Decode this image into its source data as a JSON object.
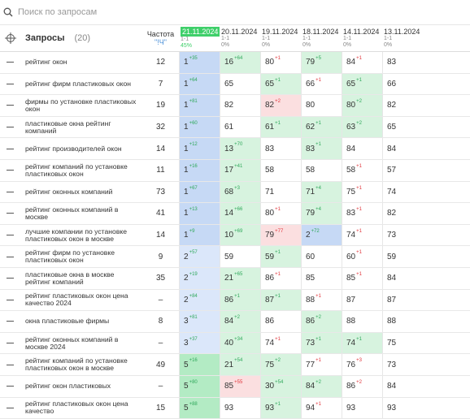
{
  "search": {
    "placeholder": "Поиск по запросам"
  },
  "header": {
    "queries": "Запросы",
    "count": "(20)",
    "freq": "Частота",
    "freq_sub": "\"!Ч\"",
    "dates": [
      {
        "date": "21.11.2024",
        "range": "1-1",
        "pct": "45%",
        "bg": "#3fcf6a"
      },
      {
        "date": "20.11.2024",
        "range": "1-1",
        "pct": "0%"
      },
      {
        "date": "19.11.2024",
        "range": "1-1",
        "pct": "0%"
      },
      {
        "date": "18.11.2024",
        "range": "1-1",
        "pct": "0%"
      },
      {
        "date": "14.11.2024",
        "range": "1-1",
        "pct": "0%"
      },
      {
        "date": "13.11.2024",
        "range": "1-1",
        "pct": "0%"
      }
    ]
  },
  "table": {
    "rows": [
      {
        "query": "рейтинг окон",
        "freq": "12",
        "cells": [
          {
            "v": 1,
            "d": "+35",
            "bg": "#c6d9f5"
          },
          {
            "v": 16,
            "d": "+64",
            "bg": "#d7f3df"
          },
          {
            "v": 80,
            "d": "+1"
          },
          {
            "v": 79,
            "d": "+5",
            "bg": "#d7f3df"
          },
          {
            "v": 84,
            "d": "+1"
          },
          {
            "v": 83
          }
        ]
      },
      {
        "query": "рейтинг фирм пластиковых окон",
        "freq": "7",
        "cells": [
          {
            "v": 1,
            "d": "+64",
            "bg": "#c6d9f5"
          },
          {
            "v": 65
          },
          {
            "v": 65,
            "d": "+1",
            "bg": "#d7f3df"
          },
          {
            "v": 66,
            "d": "+1"
          },
          {
            "v": 65,
            "d": "+1",
            "bg": "#d7f3df"
          },
          {
            "v": 66
          }
        ]
      },
      {
        "query": "фирмы по установке пластиковых окон",
        "freq": "19",
        "cells": [
          {
            "v": 1,
            "d": "+81",
            "bg": "#c6d9f5"
          },
          {
            "v": 82
          },
          {
            "v": 82,
            "d": "+2",
            "bg": "#fbdfe0"
          },
          {
            "v": 80
          },
          {
            "v": 80,
            "d": "+2",
            "bg": "#d7f3df"
          },
          {
            "v": 82
          }
        ]
      },
      {
        "query": "пластиковые окна рейтинг компаний",
        "freq": "32",
        "cells": [
          {
            "v": 1,
            "d": "+60",
            "bg": "#c6d9f5"
          },
          {
            "v": 61
          },
          {
            "v": 61,
            "d": "+1",
            "bg": "#d7f3df"
          },
          {
            "v": 62,
            "d": "+1",
            "bg": "#d7f3df"
          },
          {
            "v": 63,
            "d": "+2",
            "bg": "#d7f3df"
          },
          {
            "v": 65
          }
        ]
      },
      {
        "query": "рейтинг производителей окон",
        "freq": "14",
        "cells": [
          {
            "v": 1,
            "d": "+12",
            "bg": "#c6d9f5"
          },
          {
            "v": 13,
            "d": "+70",
            "bg": "#d7f3df"
          },
          {
            "v": 83
          },
          {
            "v": 83,
            "d": "+1",
            "bg": "#d7f3df"
          },
          {
            "v": 84
          },
          {
            "v": 84
          }
        ]
      },
      {
        "query": "рейтинг компаний по установке пластиковых окон",
        "freq": "11",
        "cells": [
          {
            "v": 1,
            "d": "+16",
            "bg": "#c6d9f5"
          },
          {
            "v": 17,
            "d": "+41",
            "bg": "#d7f3df"
          },
          {
            "v": 58
          },
          {
            "v": 58
          },
          {
            "v": 58,
            "d": "+1"
          },
          {
            "v": 57
          }
        ]
      },
      {
        "query": "рейтинг оконных компаний",
        "freq": "73",
        "cells": [
          {
            "v": 1,
            "d": "+67",
            "bg": "#c6d9f5"
          },
          {
            "v": 68,
            "d": "+3",
            "bg": "#d7f3df"
          },
          {
            "v": 71
          },
          {
            "v": 71,
            "d": "+4",
            "bg": "#d7f3df"
          },
          {
            "v": 75,
            "d": "+1"
          },
          {
            "v": 74
          }
        ]
      },
      {
        "query": "рейтинг оконных компаний в москве",
        "freq": "41",
        "cells": [
          {
            "v": 1,
            "d": "+13",
            "bg": "#c6d9f5"
          },
          {
            "v": 14,
            "d": "+66",
            "bg": "#d7f3df"
          },
          {
            "v": 80,
            "d": "+1"
          },
          {
            "v": 79,
            "d": "+4",
            "bg": "#d7f3df"
          },
          {
            "v": 83,
            "d": "+1"
          },
          {
            "v": 82
          }
        ]
      },
      {
        "query": "лучшие компании по установке пластиковых окон в москве",
        "freq": "14",
        "cells": [
          {
            "v": 1,
            "d": "+9",
            "bg": "#c6d9f5"
          },
          {
            "v": 10,
            "d": "+69",
            "bg": "#d7f3df"
          },
          {
            "v": 79,
            "d": "+77",
            "bg": "#fbdfe0"
          },
          {
            "v": 2,
            "d": "+72",
            "bg": "#c6d9f5"
          },
          {
            "v": 74,
            "d": "+1"
          },
          {
            "v": 73
          }
        ]
      },
      {
        "query": "рейтинг фирм по установке пластиковых окон",
        "freq": "9",
        "cells": [
          {
            "v": 2,
            "d": "+57",
            "bg": "#dbe7fa"
          },
          {
            "v": 59
          },
          {
            "v": 59,
            "d": "+1",
            "bg": "#d7f3df"
          },
          {
            "v": 60
          },
          {
            "v": 60,
            "d": "+1"
          },
          {
            "v": 59
          }
        ]
      },
      {
        "query": "пластиковые окна в москве рейтинг компаний",
        "freq": "35",
        "cells": [
          {
            "v": 2,
            "d": "+19",
            "bg": "#dbe7fa"
          },
          {
            "v": 21,
            "d": "+65",
            "bg": "#d7f3df"
          },
          {
            "v": 86,
            "d": "+1"
          },
          {
            "v": 85
          },
          {
            "v": 85,
            "d": "+1"
          },
          {
            "v": 84
          }
        ]
      },
      {
        "query": "рейтинг пластиковых окон цена качество 2024",
        "freq": "–",
        "cells": [
          {
            "v": 2,
            "d": "+84",
            "bg": "#dbe7fa"
          },
          {
            "v": 86,
            "d": "+1",
            "bg": "#d7f3df"
          },
          {
            "v": 87,
            "d": "+1",
            "bg": "#d7f3df"
          },
          {
            "v": 88,
            "d": "+1"
          },
          {
            "v": 87
          },
          {
            "v": 87
          }
        ]
      },
      {
        "query": "окна пластиковые фирмы",
        "freq": "8",
        "cells": [
          {
            "v": 3,
            "d": "+81",
            "bg": "#dbe7fa"
          },
          {
            "v": 84,
            "d": "+2",
            "bg": "#d7f3df"
          },
          {
            "v": 86
          },
          {
            "v": 86,
            "d": "+2",
            "bg": "#d7f3df"
          },
          {
            "v": 88
          },
          {
            "v": 88
          }
        ]
      },
      {
        "query": "рейтинг оконных компаний в москве 2024",
        "freq": "–",
        "cells": [
          {
            "v": 3,
            "d": "+37",
            "bg": "#dbe7fa"
          },
          {
            "v": 40,
            "d": "+34",
            "bg": "#d7f3df"
          },
          {
            "v": 74,
            "d": "+1"
          },
          {
            "v": 73,
            "d": "+1",
            "bg": "#d7f3df"
          },
          {
            "v": 74,
            "d": "+1",
            "bg": "#d7f3df"
          },
          {
            "v": 75
          }
        ]
      },
      {
        "query": "рейтинг компаний по установке пластиковых окон в москве",
        "freq": "49",
        "cells": [
          {
            "v": 5,
            "d": "+16",
            "bg": "#b3ebc4"
          },
          {
            "v": 21,
            "d": "+54",
            "bg": "#d7f3df"
          },
          {
            "v": 75,
            "d": "+2",
            "bg": "#d7f3df"
          },
          {
            "v": 77,
            "d": "+1"
          },
          {
            "v": 76,
            "d": "+3"
          },
          {
            "v": 73
          }
        ]
      },
      {
        "query": "рейтинг окон пластиковых",
        "freq": "–",
        "cells": [
          {
            "v": 5,
            "d": "+80",
            "bg": "#b3ebc4"
          },
          {
            "v": 85,
            "d": "+55",
            "bg": "#fbdfe0"
          },
          {
            "v": 30,
            "d": "+54",
            "bg": "#d7f3df"
          },
          {
            "v": 84,
            "d": "+2",
            "bg": "#d7f3df"
          },
          {
            "v": 86,
            "d": "+2"
          },
          {
            "v": 84
          }
        ]
      },
      {
        "query": "рейтинг пластиковых окон цена качество",
        "freq": "15",
        "cells": [
          {
            "v": 5,
            "d": "+88",
            "bg": "#b3ebc4"
          },
          {
            "v": 93
          },
          {
            "v": 93,
            "d": "+1",
            "bg": "#d7f3df"
          },
          {
            "v": 94,
            "d": "+1"
          },
          {
            "v": 93
          },
          {
            "v": 93
          }
        ]
      }
    ]
  }
}
